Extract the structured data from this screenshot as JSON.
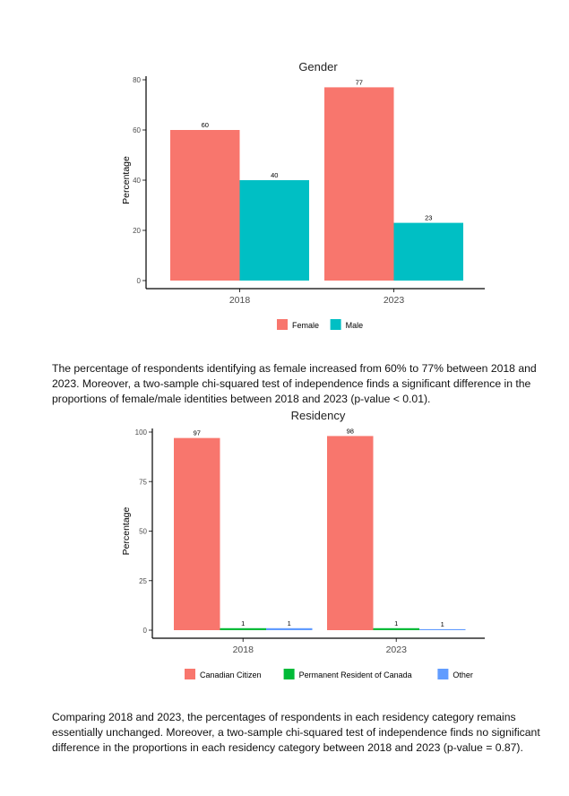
{
  "charts": [
    {
      "type": "bar",
      "title": "Gender",
      "ylabel": "Percentage",
      "xlabel": "",
      "categories": [
        "2018",
        "2023"
      ],
      "ylim": [
        0,
        80
      ],
      "yticks": [
        "0",
        "20",
        "40",
        "60",
        "80"
      ],
      "series": [
        {
          "name": "Female",
          "values": [
            60,
            77
          ],
          "labels": [
            "60",
            "77"
          ],
          "color": "#F8766D"
        },
        {
          "name": "Male",
          "values": [
            40,
            23
          ],
          "labels": [
            "40",
            "23"
          ],
          "color": "#00BFC4"
        }
      ],
      "legend_position": "bottom"
    },
    {
      "type": "bar",
      "title": "Residency",
      "ylabel": "Percentage",
      "xlabel": "",
      "categories": [
        "2018",
        "2023"
      ],
      "ylim": [
        0,
        100
      ],
      "yticks": [
        "0",
        "25",
        "50",
        "75",
        "100"
      ],
      "series": [
        {
          "name": "Canadian Citizen",
          "values": [
            97,
            98
          ],
          "labels": [
            "97",
            "98"
          ],
          "color": "#F8766D"
        },
        {
          "name": "Permanent Resident of Canada",
          "values": [
            1,
            1
          ],
          "labels": [
            "1",
            "1"
          ],
          "color": "#00BA38"
        },
        {
          "name": "Other",
          "values": [
            1,
            0.5
          ],
          "labels": [
            "1",
            "1"
          ],
          "color": "#619CFF"
        }
      ],
      "legend_position": "bottom"
    }
  ],
  "paragraphs": {
    "gender": "The percentage of respondents identifying as female increased from 60% to 77% between 2018 and 2023. Moreover, a two-sample chi-squared test of independence finds a significant difference in the proportions of female/male identities between 2018 and 2023 (p-value < 0.01).",
    "residency": "Comparing 2018 and 2023, the percentages of respondents in each residency category remains essentially unchanged. Moreover, a two-sample chi-squared test of independence finds no significant difference in the proportions in each residency category between 2018 and 2023 (p-value = 0.87)."
  }
}
